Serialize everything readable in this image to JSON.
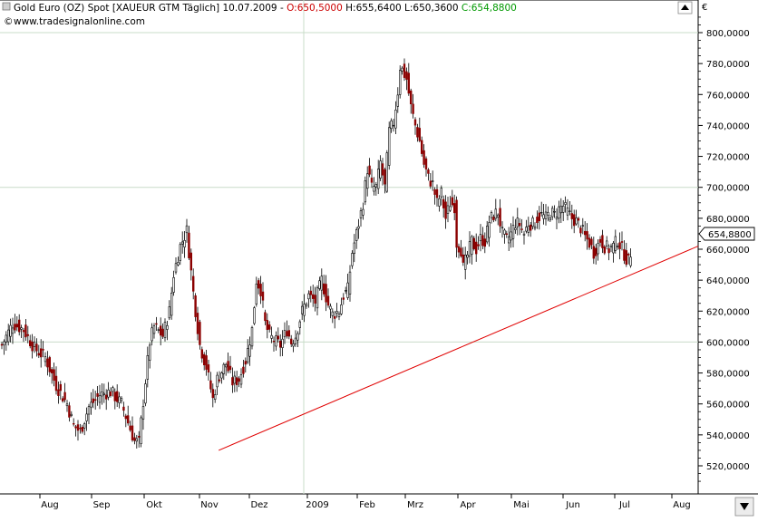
{
  "header": {
    "line1_prefix": "Gold Euro (OZ) Spot [XAUEUR GTM  Täglich] 10.07.2009 - ",
    "open": "O:650,5000",
    "high": "H:655,6400",
    "low": "L:650,3600",
    "close": "C:654,8800",
    "source": "www.tradesignalonline.com"
  },
  "currency_symbol": "€",
  "last_price_label": "654,8800",
  "colors": {
    "up": "#000000",
    "down": "#8b0000",
    "trendline": "#e00000",
    "grid": "#c8dcc8",
    "open_color": "#cc0000",
    "close_color": "#009900",
    "axis_bg": "#ffffff"
  },
  "chart_data": {
    "type": "candlestick",
    "title": "Gold Euro (OZ) Spot [XAUEUR GTM  Täglich]",
    "period": "Täglich",
    "x_labels": [
      "Aug",
      "Sep",
      "Okt",
      "Nov",
      "Dez",
      "2009",
      "Feb",
      "Mrz",
      "Apr",
      "Mai",
      "Jun",
      "Jul",
      "Aug"
    ],
    "y_ticks": [
      520,
      540,
      560,
      580,
      600,
      620,
      640,
      660,
      680,
      700,
      720,
      740,
      760,
      780,
      800
    ],
    "y_tick_labels": [
      "520,0000",
      "540,0000",
      "560,0000",
      "580,0000",
      "600,0000",
      "620,0000",
      "640,0000",
      "660,0000",
      "680,0000",
      "700,0000",
      "720,0000",
      "740,0000",
      "760,0000",
      "780,0000",
      "800,0000"
    ],
    "ylim": [
      510,
      812
    ],
    "grid": "major lines at 2009, 600, 700, 800",
    "last_close": 654.88,
    "close_anchors": [
      [
        0,
        598
      ],
      [
        5,
        612
      ],
      [
        10,
        608
      ],
      [
        15,
        596
      ],
      [
        20,
        590
      ],
      [
        25,
        572
      ],
      [
        30,
        560
      ],
      [
        33,
        546
      ],
      [
        36,
        542
      ],
      [
        40,
        558
      ],
      [
        45,
        566
      ],
      [
        50,
        568
      ],
      [
        55,
        560
      ],
      [
        58,
        548
      ],
      [
        61,
        536
      ],
      [
        63,
        535
      ],
      [
        66,
        575
      ],
      [
        68,
        600
      ],
      [
        70,
        610
      ],
      [
        74,
        604
      ],
      [
        77,
        620
      ],
      [
        79,
        644
      ],
      [
        82,
        662
      ],
      [
        85,
        672
      ],
      [
        88,
        632
      ],
      [
        91,
        598
      ],
      [
        94,
        584
      ],
      [
        97,
        563
      ],
      [
        99,
        576
      ],
      [
        103,
        586
      ],
      [
        106,
        574
      ],
      [
        109,
        576
      ],
      [
        112,
        588
      ],
      [
        115,
        608
      ],
      [
        117,
        640
      ],
      [
        119,
        634
      ],
      [
        121,
        612
      ],
      [
        123,
        604
      ],
      [
        126,
        600
      ],
      [
        128,
        598
      ],
      [
        131,
        608
      ],
      [
        133,
        600
      ],
      [
        135,
        604
      ],
      [
        138,
        620
      ],
      [
        141,
        630
      ],
      [
        144,
        626
      ],
      [
        147,
        640
      ],
      [
        150,
        624
      ],
      [
        152,
        618
      ],
      [
        155,
        620
      ],
      [
        157,
        630
      ],
      [
        159,
        634
      ],
      [
        161,
        658
      ],
      [
        163,
        670
      ],
      [
        166,
        690
      ],
      [
        168,
        712
      ],
      [
        170,
        700
      ],
      [
        172,
        700
      ],
      [
        174,
        716
      ],
      [
        176,
        700
      ],
      [
        178,
        736
      ],
      [
        180,
        742
      ],
      [
        182,
        762
      ],
      [
        183,
        778
      ],
      [
        184,
        776
      ],
      [
        186,
        770
      ],
      [
        188,
        752
      ],
      [
        190,
        740
      ],
      [
        192,
        730
      ],
      [
        194,
        715
      ],
      [
        196,
        706
      ],
      [
        198,
        702
      ],
      [
        200,
        690
      ],
      [
        202,
        696
      ],
      [
        204,
        680
      ],
      [
        206,
        690
      ],
      [
        208,
        688
      ],
      [
        209,
        664
      ],
      [
        211,
        660
      ],
      [
        212,
        648
      ],
      [
        214,
        656
      ],
      [
        216,
        665
      ],
      [
        218,
        660
      ],
      [
        220,
        667
      ],
      [
        222,
        665
      ],
      [
        224,
        678
      ],
      [
        226,
        682
      ],
      [
        228,
        684
      ],
      [
        230,
        670
      ],
      [
        232,
        666
      ],
      [
        234,
        670
      ],
      [
        236,
        677
      ],
      [
        238,
        676
      ],
      [
        240,
        670
      ],
      [
        242,
        677
      ],
      [
        244,
        676
      ],
      [
        246,
        680
      ],
      [
        248,
        682
      ],
      [
        250,
        680
      ],
      [
        252,
        684
      ],
      [
        254,
        682
      ],
      [
        256,
        686
      ],
      [
        258,
        688
      ],
      [
        260,
        684
      ],
      [
        262,
        680
      ],
      [
        264,
        678
      ],
      [
        266,
        674
      ],
      [
        268,
        668
      ],
      [
        270,
        664
      ],
      [
        272,
        658
      ],
      [
        273,
        660
      ],
      [
        275,
        666
      ],
      [
        277,
        662
      ],
      [
        279,
        660
      ],
      [
        281,
        662
      ],
      [
        283,
        666
      ],
      [
        285,
        660
      ],
      [
        287,
        654
      ],
      [
        288,
        652
      ],
      [
        289,
        654.88
      ]
    ],
    "trendline": {
      "from": [
        98,
        530
      ],
      "to": [
        "right edge",
        662
      ],
      "color": "#e00000"
    }
  }
}
